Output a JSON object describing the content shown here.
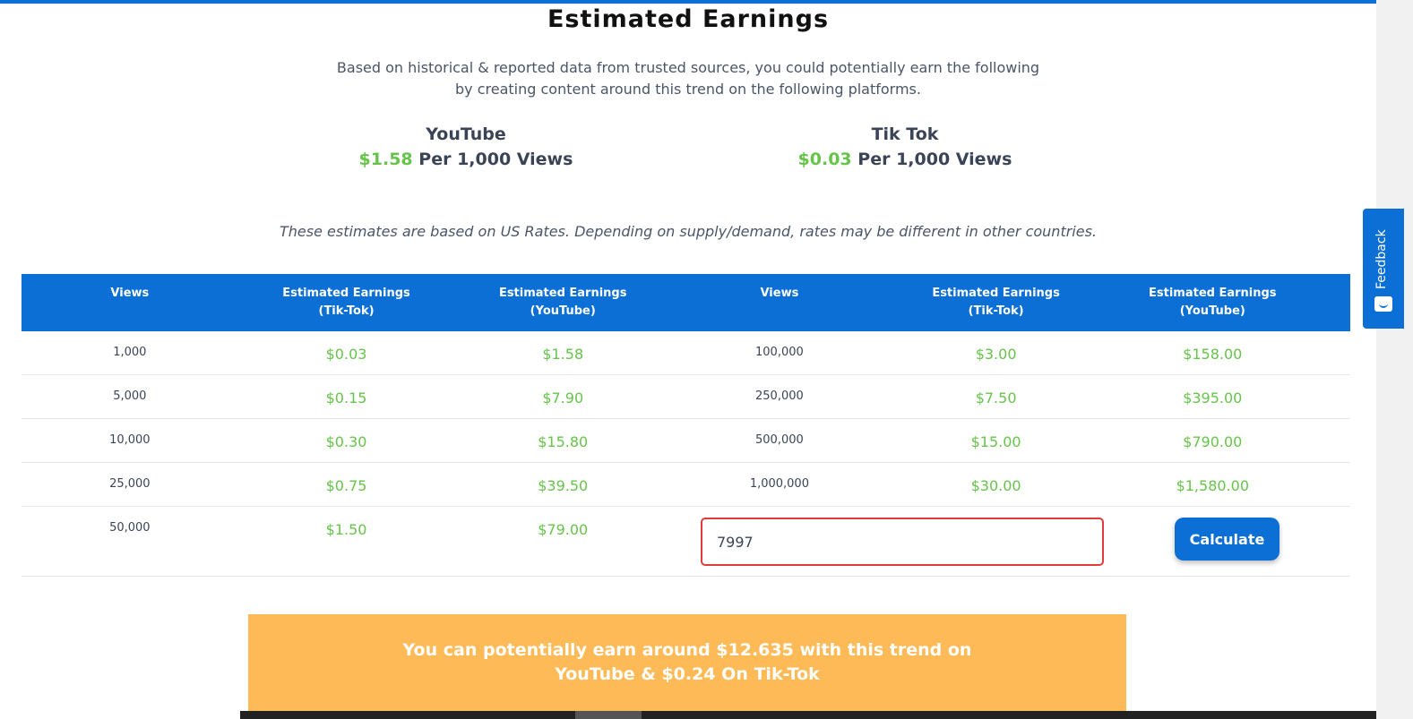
{
  "header": {
    "title": "Estimated Earnings",
    "subtitle_line1": "Based on historical & reported data from trusted sources, you could potentially earn the following",
    "subtitle_line2": "by creating content around this trend on the following platforms."
  },
  "platforms": [
    {
      "name": "YouTube",
      "rate": "$1.58",
      "unit": "Per 1,000 Views"
    },
    {
      "name": "Tik Tok",
      "rate": "$0.03",
      "unit": "Per 1,000 Views"
    }
  ],
  "note": "These estimates are based on US Rates. Depending on supply/demand, rates may be different in other countries.",
  "table": {
    "headers": [
      {
        "line1": "Views",
        "line2": ""
      },
      {
        "line1": "Estimated Earnings",
        "line2": "(Tik-Tok)"
      },
      {
        "line1": "Estimated Earnings",
        "line2": "(YouTube)"
      },
      {
        "line1": "Views",
        "line2": ""
      },
      {
        "line1": "Estimated Earnings",
        "line2": "(Tik-Tok)"
      },
      {
        "line1": "Estimated Earnings",
        "line2": "(YouTube)"
      }
    ],
    "rows": [
      [
        "1,000",
        "$0.03",
        "$1.58",
        "100,000",
        "$3.00",
        "$158.00"
      ],
      [
        "5,000",
        "$0.15",
        "$7.90",
        "250,000",
        "$7.50",
        "$395.00"
      ],
      [
        "10,000",
        "$0.30",
        "$15.80",
        "500,000",
        "$15.00",
        "$790.00"
      ],
      [
        "25,000",
        "$0.75",
        "$39.50",
        "1,000,000",
        "$30.00",
        "$1,580.00"
      ],
      [
        "50,000",
        "$1.50",
        "$79.00",
        "",
        "",
        ""
      ]
    ]
  },
  "calculator": {
    "input_value": "7997",
    "button_label": "Calculate"
  },
  "result": {
    "line1": "You can potentially earn around $12.635 with this trend on",
    "line2": "YouTube & $0.24 On Tik-Tok"
  },
  "feedback_tab": {
    "label": "Feedback",
    "icon": "chat-icon"
  },
  "colors": {
    "accent": "#0b6fd6",
    "money": "#66c44a",
    "result_bg": "#fdba57",
    "input_border": "#e23b3b"
  }
}
